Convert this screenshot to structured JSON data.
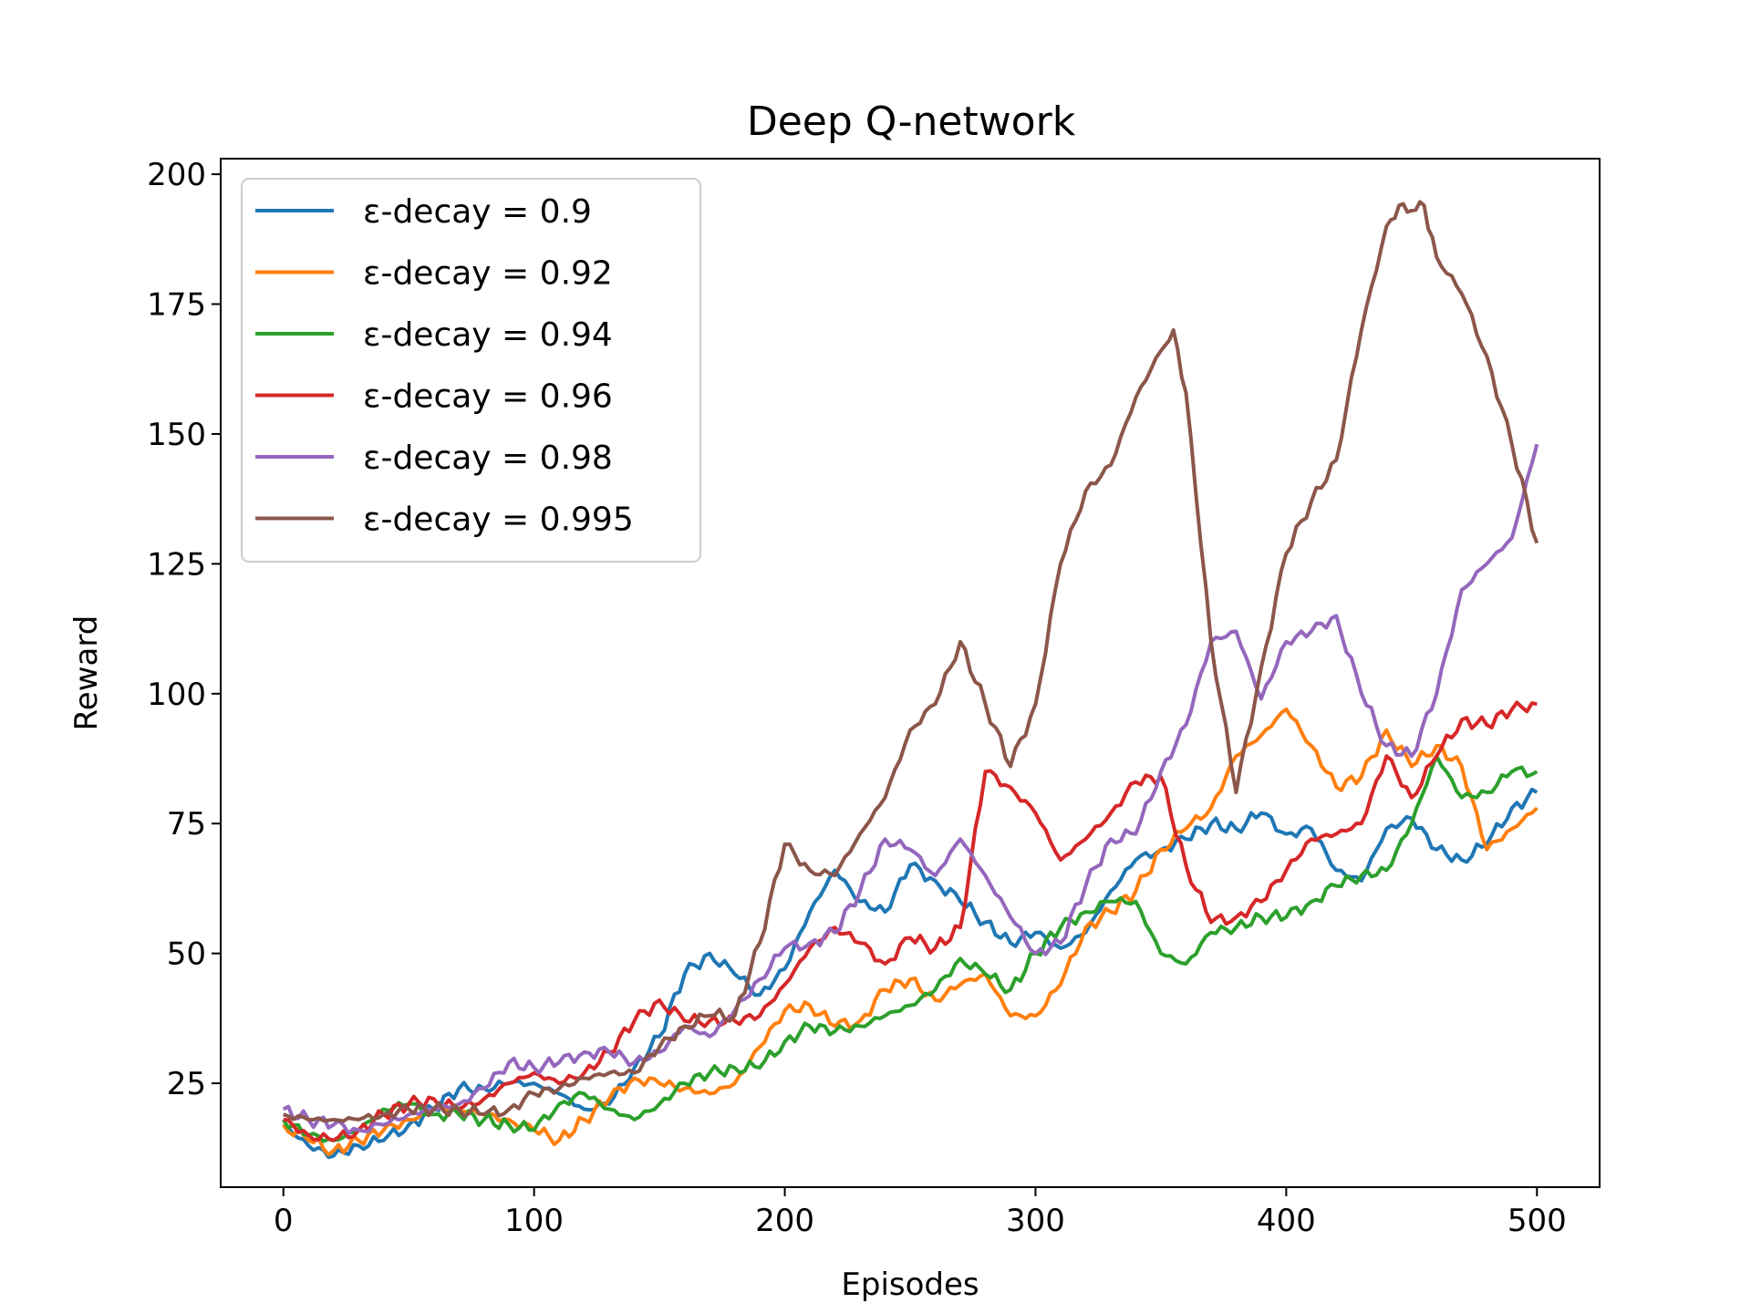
{
  "chart_data": {
    "type": "line",
    "title": "Deep Q-network",
    "xlabel": "Episodes",
    "ylabel": "Reward",
    "xlim": [
      -25,
      525
    ],
    "ylim": [
      5,
      203
    ],
    "xticks": [
      0,
      100,
      200,
      300,
      400,
      500
    ],
    "yticks": [
      25,
      50,
      75,
      100,
      125,
      150,
      175,
      200
    ],
    "grid": false,
    "legend_position": "top-left",
    "series": [
      {
        "name": "ε-decay = 0.9",
        "color": "#1f77b4",
        "x": [
          0,
          10,
          20,
          30,
          40,
          50,
          60,
          70,
          80,
          90,
          100,
          110,
          120,
          130,
          140,
          150,
          160,
          170,
          180,
          190,
          200,
          210,
          220,
          230,
          240,
          250,
          260,
          270,
          280,
          290,
          300,
          310,
          320,
          330,
          340,
          350,
          360,
          370,
          380,
          390,
          400,
          410,
          420,
          430,
          440,
          450,
          460,
          470,
          480,
          490,
          500
        ],
        "values": [
          17,
          13,
          11,
          13,
          14,
          17,
          20,
          24,
          24,
          25,
          25,
          23,
          20,
          21,
          28,
          34,
          46,
          50,
          46,
          42,
          47,
          58,
          66,
          60,
          58,
          67,
          64,
          60,
          56,
          52,
          54,
          51,
          54,
          62,
          68,
          70,
          72,
          75,
          74,
          77,
          73,
          74,
          66,
          64,
          74,
          76,
          70,
          68,
          71,
          78,
          81
        ]
      },
      {
        "name": "ε-decay = 0.92",
        "color": "#ff7f0e",
        "x": [
          0,
          10,
          20,
          30,
          40,
          50,
          60,
          70,
          80,
          90,
          100,
          110,
          120,
          130,
          140,
          150,
          160,
          170,
          180,
          190,
          200,
          210,
          220,
          230,
          240,
          250,
          260,
          270,
          280,
          290,
          300,
          310,
          320,
          330,
          340,
          350,
          360,
          370,
          380,
          390,
          400,
          410,
          420,
          430,
          440,
          450,
          460,
          470,
          480,
          490,
          500
        ],
        "values": [
          17,
          14,
          12,
          14,
          16,
          18,
          20,
          20,
          19,
          18,
          16,
          14,
          18,
          22,
          26,
          25,
          24,
          23,
          25,
          32,
          39,
          40,
          36,
          37,
          43,
          45,
          41,
          44,
          46,
          38,
          38,
          44,
          55,
          58,
          62,
          70,
          74,
          78,
          88,
          92,
          97,
          90,
          82,
          84,
          93,
          86,
          90,
          86,
          70,
          74,
          78
        ]
      },
      {
        "name": "ε-decay = 0.94",
        "color": "#2ca02c",
        "x": [
          0,
          10,
          20,
          30,
          40,
          50,
          60,
          70,
          80,
          90,
          100,
          110,
          120,
          130,
          140,
          150,
          160,
          170,
          180,
          190,
          200,
          210,
          220,
          230,
          240,
          250,
          260,
          270,
          280,
          290,
          300,
          310,
          320,
          330,
          340,
          350,
          360,
          370,
          380,
          390,
          400,
          410,
          420,
          430,
          440,
          450,
          460,
          470,
          480,
          490,
          500
        ],
        "values": [
          18,
          15,
          14,
          16,
          20,
          21,
          19,
          19,
          18,
          17,
          16,
          21,
          23,
          20,
          18,
          21,
          25,
          27,
          28,
          28,
          33,
          36,
          35,
          36,
          38,
          40,
          43,
          49,
          46,
          43,
          50,
          55,
          58,
          60,
          60,
          50,
          48,
          54,
          55,
          57,
          57,
          60,
          63,
          65,
          66,
          75,
          88,
          80,
          81,
          85,
          85
        ]
      },
      {
        "name": "ε-decay = 0.96",
        "color": "#d62728",
        "x": [
          0,
          10,
          20,
          30,
          40,
          50,
          60,
          70,
          80,
          90,
          100,
          110,
          120,
          130,
          140,
          150,
          160,
          170,
          180,
          190,
          200,
          210,
          220,
          230,
          240,
          250,
          260,
          270,
          280,
          290,
          300,
          310,
          320,
          330,
          340,
          350,
          360,
          370,
          380,
          390,
          400,
          410,
          420,
          430,
          440,
          450,
          460,
          470,
          480,
          490,
          500
        ],
        "values": [
          18,
          15,
          14,
          16,
          19,
          21,
          22,
          20,
          22,
          25,
          27,
          25,
          27,
          31,
          37,
          41,
          37,
          37,
          37,
          38,
          44,
          51,
          55,
          52,
          48,
          53,
          51,
          55,
          85,
          82,
          77,
          68,
          72,
          77,
          83,
          84,
          67,
          56,
          57,
          60,
          66,
          72,
          73,
          75,
          88,
          80,
          88,
          95,
          94,
          97,
          98
        ]
      },
      {
        "name": "ε-decay = 0.98",
        "color": "#9467bd",
        "x": [
          0,
          10,
          20,
          30,
          40,
          50,
          60,
          70,
          80,
          90,
          100,
          110,
          120,
          130,
          140,
          150,
          160,
          170,
          180,
          190,
          200,
          210,
          220,
          230,
          240,
          250,
          260,
          270,
          280,
          290,
          300,
          310,
          320,
          330,
          340,
          350,
          360,
          370,
          380,
          390,
          400,
          410,
          420,
          430,
          440,
          450,
          460,
          470,
          480,
          490,
          500
        ],
        "values": [
          20,
          18,
          17,
          16,
          17,
          19,
          20,
          21,
          24,
          29,
          28,
          29,
          31,
          31,
          29,
          31,
          36,
          34,
          39,
          45,
          51,
          52,
          54,
          62,
          72,
          70,
          65,
          72,
          65,
          57,
          50,
          52,
          63,
          72,
          73,
          85,
          94,
          110,
          112,
          99,
          110,
          112,
          115,
          100,
          90,
          88,
          100,
          120,
          125,
          130,
          148
        ]
      },
      {
        "name": "ε-decay = 0.995",
        "color": "#8c564b",
        "x": [
          0,
          10,
          20,
          30,
          40,
          50,
          60,
          70,
          80,
          90,
          100,
          110,
          120,
          130,
          140,
          150,
          160,
          170,
          180,
          190,
          200,
          210,
          220,
          230,
          240,
          250,
          260,
          270,
          280,
          290,
          300,
          310,
          320,
          330,
          340,
          350,
          355,
          360,
          370,
          380,
          390,
          400,
          410,
          420,
          430,
          440,
          445,
          450,
          455,
          460,
          470,
          480,
          490,
          500
        ],
        "values": [
          19,
          18,
          18,
          18,
          19,
          20,
          20,
          20,
          19,
          20,
          23,
          24,
          26,
          27,
          27,
          32,
          36,
          38,
          38,
          52,
          71,
          66,
          65,
          73,
          80,
          93,
          98,
          110,
          98,
          86,
          98,
          125,
          139,
          144,
          157,
          166,
          170,
          158,
          110,
          81,
          105,
          127,
          137,
          145,
          170,
          190,
          194,
          193,
          194,
          184,
          177,
          165,
          148,
          129
        ]
      }
    ]
  }
}
